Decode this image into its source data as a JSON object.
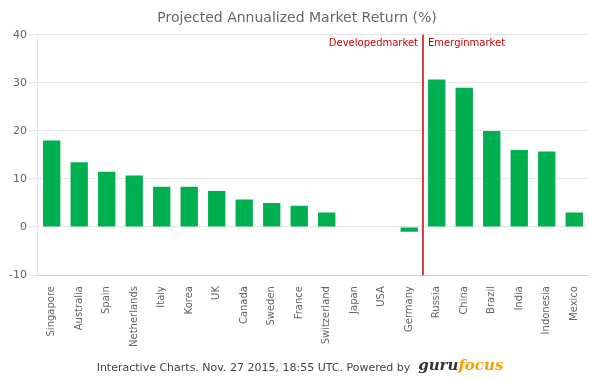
{
  "chart_data": {
    "type": "bar",
    "title": "Projected Annualized Market Return (%)",
    "categories": [
      "Singapore",
      "Australia",
      "Spain",
      "Netherlands",
      "Italy",
      "Korea",
      "UK",
      "Canada",
      "Sweden",
      "France",
      "Switzerland",
      "Japan",
      "USA",
      "Germany",
      "Russia",
      "China",
      "Brazil",
      "India",
      "Indonesia",
      "Mexico"
    ],
    "values": [
      18.0,
      13.5,
      11.5,
      10.7,
      8.4,
      8.4,
      7.5,
      5.7,
      5.0,
      4.4,
      3.0,
      0.0,
      0.0,
      -1.0,
      30.7,
      29.0,
      20.0,
      16.0,
      15.7,
      3.0
    ],
    "color": "#00b050",
    "ylim": [
      -10,
      40
    ],
    "yticks": [
      -10,
      0,
      10,
      20,
      30,
      40
    ],
    "grid": true,
    "annotations": [
      {
        "type": "vline",
        "between": [
          "Germany",
          "Russia"
        ],
        "color": "#cc0000"
      },
      {
        "text": "Developedmarket",
        "anchor": "divider_left",
        "color": "#cc0000"
      },
      {
        "text": "Emerginmarket",
        "anchor": "divider_right",
        "color": "#cc0000"
      },
      {
        "text": "Interactive Charts. Nov. 27 2015, 18:55 UTC. Powered by",
        "anchor": "footer",
        "color": "#444444"
      },
      {
        "text": "guru",
        "anchor": "footer",
        "color": "#333333"
      },
      {
        "text": "focus",
        "anchor": "footer",
        "color": "#f5a000"
      }
    ]
  }
}
